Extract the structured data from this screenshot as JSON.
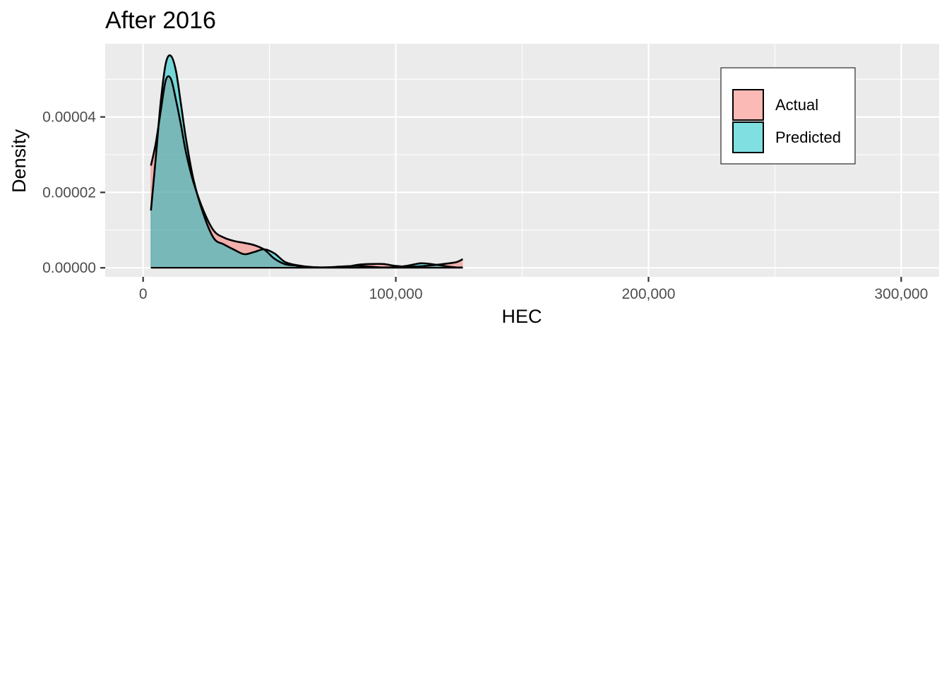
{
  "chart_data": {
    "type": "area",
    "title": "After 2016",
    "xlabel": "HEC",
    "ylabel": "Density",
    "xlim": [
      -15000,
      315000
    ],
    "ylim": [
      -2.4e-06,
      5.94e-05
    ],
    "x_ticks": [
      0,
      100000,
      200000,
      300000
    ],
    "x_tick_labels": [
      "0",
      "100,000",
      "200,000",
      "300,000"
    ],
    "y_ticks": [
      0,
      2e-05,
      4e-05
    ],
    "y_tick_labels": [
      "0.00000",
      "0.00002",
      "0.00004"
    ],
    "grid": true,
    "legend_position": "top-right",
    "series": [
      {
        "name": "Actual",
        "color": "#f8766d",
        "x": [
          3100,
          5000,
          7000,
          9000,
          11000,
          13000,
          15000,
          17000,
          20000,
          24000,
          28000,
          32000,
          36000,
          40000,
          44000,
          48000,
          52000,
          56000,
          60000,
          65000,
          70000,
          75000,
          80000,
          85000,
          90000,
          95000,
          100000,
          105000,
          110000,
          115000,
          120000,
          124000,
          126500
        ],
        "y": [
          2.71e-05,
          3.3e-05,
          4.17e-05,
          4.98e-05,
          5.01e-05,
          4.45e-05,
          3.78e-05,
          3.05e-05,
          2.25e-05,
          1.5e-05,
          9.8e-06,
          8e-06,
          7.1e-06,
          6.6e-06,
          6e-06,
          4.8e-06,
          2.4e-06,
          1e-06,
          6e-07,
          2e-07,
          1e-07,
          1e-07,
          2e-07,
          8e-07,
          1e-06,
          1e-06,
          5e-07,
          3e-07,
          4e-07,
          7e-07,
          1.1e-06,
          1.5e-06,
          2.3e-06
        ]
      },
      {
        "name": "Predicted",
        "color": "#00bfc4",
        "x": [
          3100,
          5000,
          7000,
          9000,
          11000,
          13000,
          15000,
          17000,
          20000,
          24000,
          28000,
          32000,
          36000,
          40000,
          44000,
          48000,
          52000,
          56000,
          60000,
          65000,
          70000,
          75000,
          80000,
          85000,
          90000,
          95000,
          100000,
          105000,
          110000,
          115000,
          120000,
          124000,
          126500
        ],
        "y": [
          1.52e-05,
          2.91e-05,
          4.42e-05,
          5.43e-05,
          5.62e-05,
          5.22e-05,
          4.33e-05,
          3.41e-05,
          2.32e-05,
          1.4e-05,
          7.8e-06,
          6.2e-06,
          4.8e-06,
          3.6e-06,
          4.2e-06,
          4.9e-06,
          3.8e-06,
          1.6e-06,
          8e-07,
          3e-07,
          1e-07,
          2e-07,
          4e-07,
          5e-07,
          3e-07,
          1e-07,
          2e-07,
          6e-07,
          1.2e-06,
          9e-07,
          4e-07,
          1e-07,
          1e-07
        ]
      }
    ]
  }
}
